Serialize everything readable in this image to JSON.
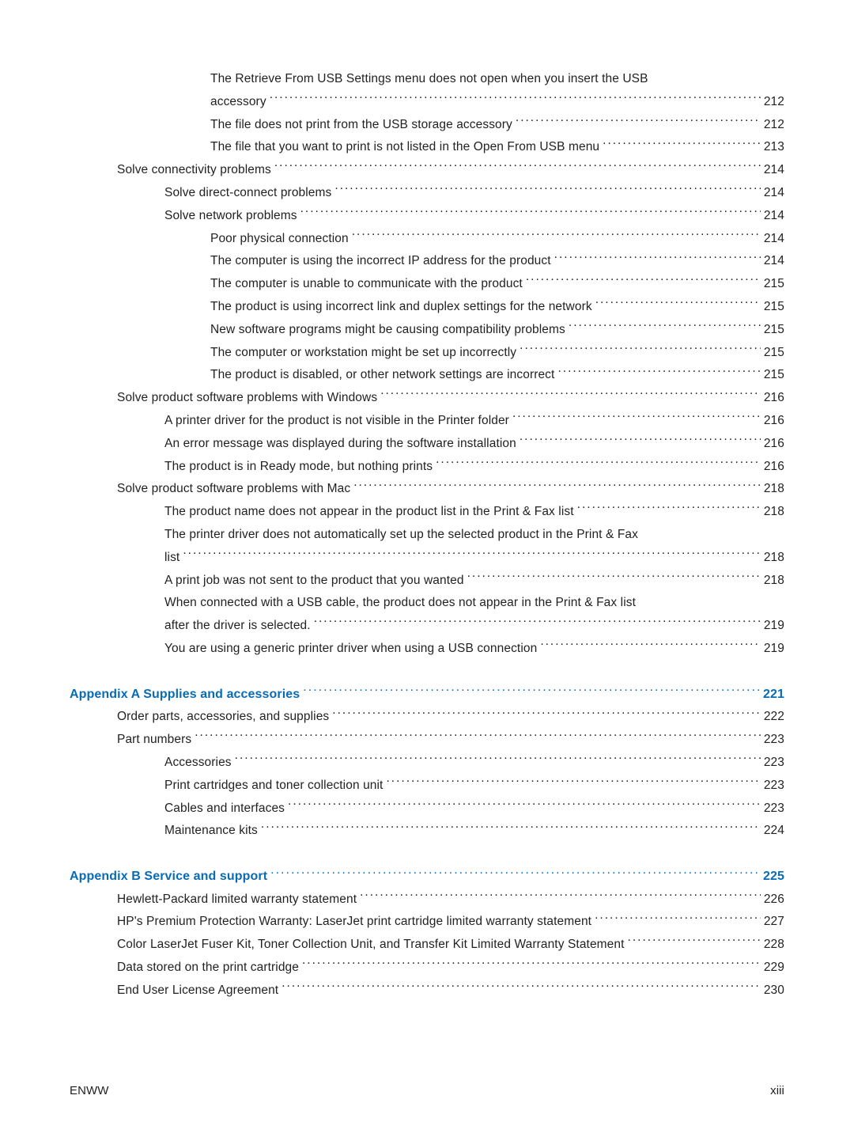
{
  "colors": {
    "text": "#222222",
    "link": "#0a6bb5",
    "background": "#ffffff"
  },
  "typography": {
    "body_fontsize_pt": 11.5,
    "heading_fontsize_pt": 12,
    "font_family": "Arial"
  },
  "toc": {
    "entries": [
      {
        "level": 4,
        "wrap": true,
        "label": "The Retrieve From USB Settings menu does not open when you insert the USB",
        "label2": "accessory",
        "page": "212"
      },
      {
        "level": 4,
        "label": "The file does not print from the USB storage accessory",
        "page": "212"
      },
      {
        "level": 4,
        "label": "The file that you want to print is not listed in the Open From USB menu",
        "page": "213"
      },
      {
        "level": 2,
        "label": "Solve connectivity problems",
        "page": "214"
      },
      {
        "level": 3,
        "label": "Solve direct-connect problems",
        "page": "214"
      },
      {
        "level": 3,
        "label": "Solve network problems",
        "page": "214"
      },
      {
        "level": 4,
        "label": "Poor physical connection",
        "page": "214"
      },
      {
        "level": 4,
        "label": "The computer is using the incorrect IP address for the product",
        "page": "214"
      },
      {
        "level": 4,
        "label": "The computer is unable to communicate with the product",
        "page": "215"
      },
      {
        "level": 4,
        "label": "The product is using incorrect link and duplex settings for the network",
        "page": "215"
      },
      {
        "level": 4,
        "label": "New software programs might be causing compatibility problems",
        "page": "215"
      },
      {
        "level": 4,
        "label": "The computer or workstation might be set up incorrectly",
        "page": "215"
      },
      {
        "level": 4,
        "label": "The product is disabled, or other network settings are incorrect",
        "page": "215"
      },
      {
        "level": 2,
        "label": "Solve product software problems with Windows",
        "page": "216"
      },
      {
        "level": 3,
        "label": "A printer driver for the product is not visible in the Printer folder",
        "page": "216"
      },
      {
        "level": 3,
        "label": "An error message was displayed during the software installation",
        "page": "216"
      },
      {
        "level": 3,
        "label": "The product is in Ready mode, but nothing prints",
        "page": "216"
      },
      {
        "level": 2,
        "label": "Solve product software problems with Mac",
        "page": "218"
      },
      {
        "level": 3,
        "label": "The product name does not appear in the product list in the Print & Fax list",
        "page": "218"
      },
      {
        "level": 3,
        "wrap": true,
        "label": "The printer driver does not automatically set up the selected product in the Print & Fax",
        "label2": "list",
        "page": "218"
      },
      {
        "level": 3,
        "label": "A print job was not sent to the product that you wanted",
        "page": "218"
      },
      {
        "level": 3,
        "wrap": true,
        "label": "When connected with a USB cable, the product does not appear in the Print & Fax list",
        "label2": "after the driver is selected.",
        "page": "219"
      },
      {
        "level": 3,
        "label": "You are using a generic printer driver when using a USB connection",
        "page": "219"
      }
    ],
    "appendixA": {
      "head": {
        "label": "Appendix A  Supplies and accessories",
        "page": "221"
      },
      "entries": [
        {
          "level": 2,
          "label": "Order parts, accessories, and supplies",
          "page": "222"
        },
        {
          "level": 2,
          "label": "Part numbers",
          "page": "223"
        },
        {
          "level": 3,
          "label": "Accessories",
          "page": "223"
        },
        {
          "level": 3,
          "label": "Print cartridges and toner collection unit",
          "page": "223"
        },
        {
          "level": 3,
          "label": "Cables and interfaces",
          "page": "223"
        },
        {
          "level": 3,
          "label": "Maintenance kits",
          "page": "224"
        }
      ]
    },
    "appendixB": {
      "head": {
        "label": "Appendix B  Service and support",
        "page": "225"
      },
      "entries": [
        {
          "level": 2,
          "label": "Hewlett-Packard limited warranty statement",
          "page": "226"
        },
        {
          "level": 2,
          "label": "HP's Premium Protection Warranty: LaserJet print cartridge limited warranty statement",
          "page": "227"
        },
        {
          "level": 2,
          "label": "Color LaserJet Fuser Kit, Toner Collection Unit, and Transfer Kit Limited Warranty Statement",
          "page": "228"
        },
        {
          "level": 2,
          "label": "Data stored on the print cartridge",
          "page": "229"
        },
        {
          "level": 2,
          "label": "End User License Agreement",
          "page": "230"
        }
      ]
    }
  },
  "footer": {
    "left": "ENWW",
    "right": "xiii"
  }
}
